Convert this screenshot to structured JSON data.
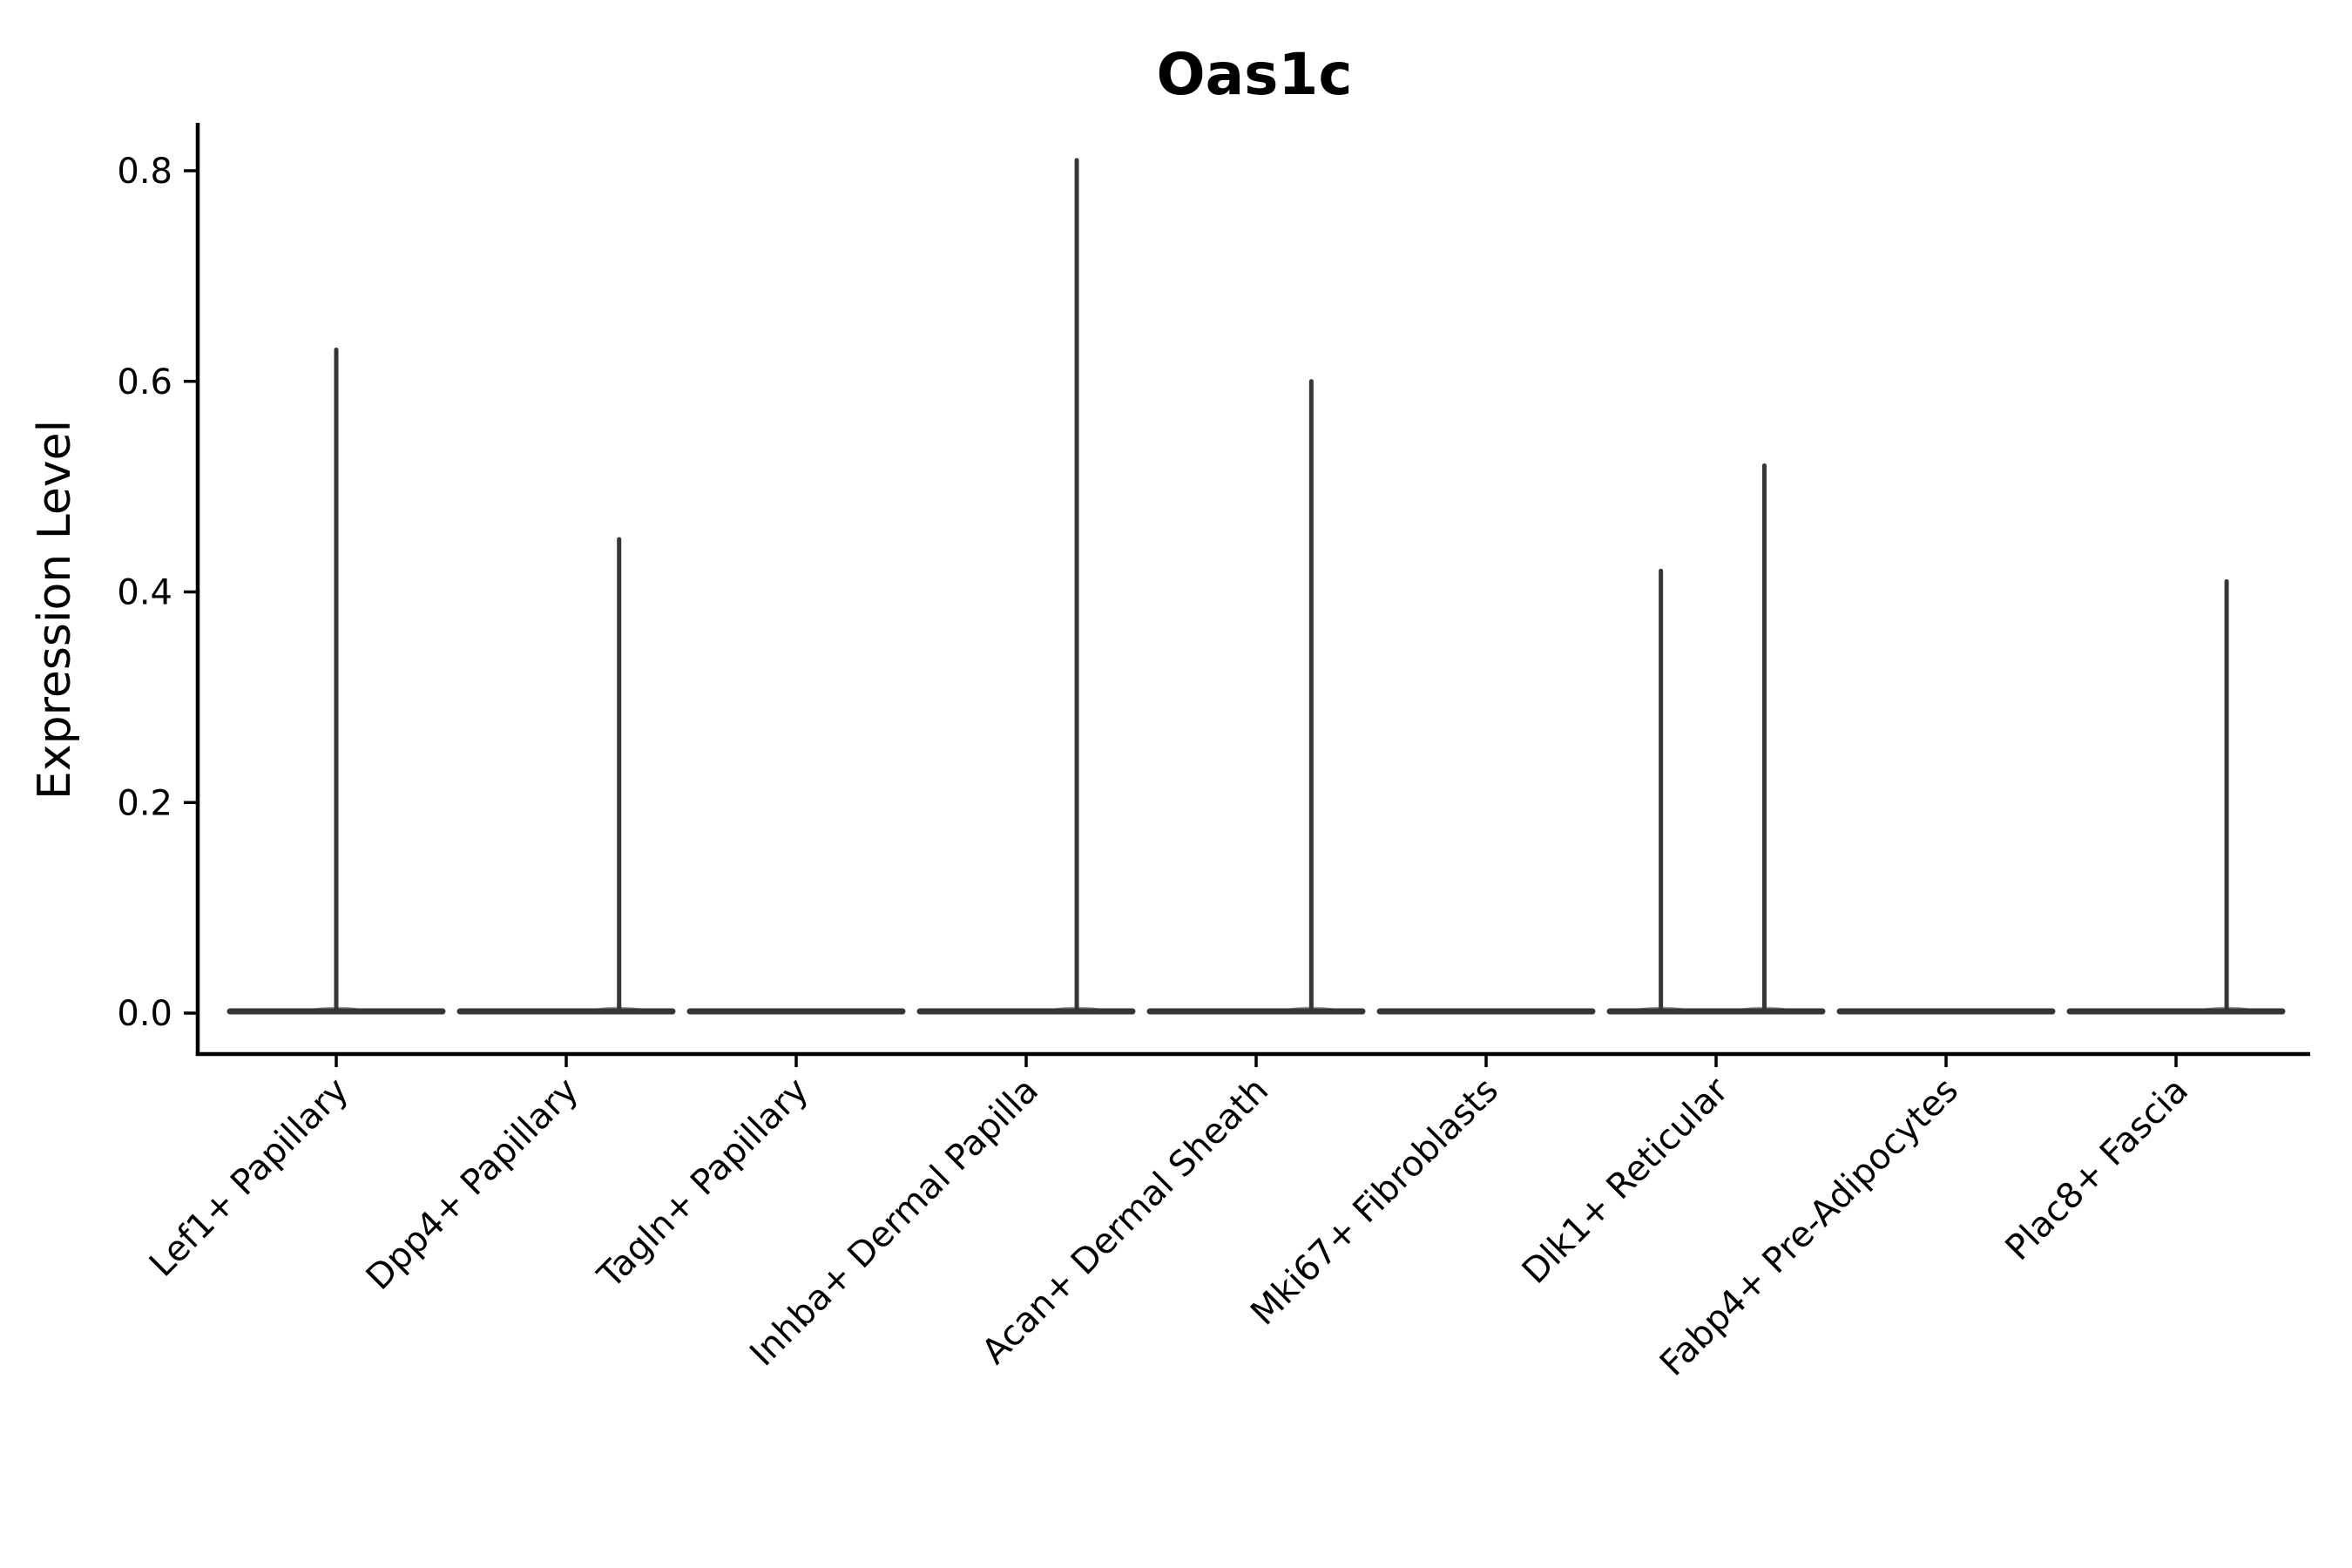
{
  "chart_data": {
    "type": "violin",
    "title": "Oas1c",
    "ylabel": "Expression Level",
    "xlabel": "",
    "grid": false,
    "legend": null,
    "background_color": "#ffffff",
    "spine_color": "#000000",
    "violin_color": "#363636",
    "ylim": [
      -0.04,
      0.85
    ],
    "yticks": [
      0.0,
      0.2,
      0.4,
      0.6,
      0.8
    ],
    "ytick_labels": [
      "0.0",
      "0.2",
      "0.4",
      "0.6",
      "0.8"
    ],
    "x_tick_label_rotation": 45,
    "categories": [
      "Lef1+ Papillary",
      "Dpp4+ Papillary",
      "Tagln+ Papillary",
      "Inhba+ Dermal Papilla",
      "Acan+ Dermal Sheath",
      "Mki67+ Fibroblasts",
      "Dlk1+ Reticular",
      "Fabp4+ Pre-Adipocytes",
      "Plac8+ Fascia"
    ],
    "violins": [
      {
        "label": "Lef1+ Papillary",
        "baseline_value": 0.0,
        "spikes": [
          {
            "dx": 0.0,
            "top": 0.63
          }
        ]
      },
      {
        "label": "Dpp4+ Papillary",
        "baseline_value": 0.0,
        "spikes": [
          {
            "dx": 0.23,
            "top": 0.45
          }
        ]
      },
      {
        "label": "Tagln+ Papillary",
        "baseline_value": 0.0,
        "spikes": []
      },
      {
        "label": "Inhba+ Dermal Papilla",
        "baseline_value": 0.0,
        "spikes": [
          {
            "dx": 0.22,
            "top": 0.81
          }
        ]
      },
      {
        "label": "Acan+ Dermal Sheath",
        "baseline_value": 0.0,
        "spikes": [
          {
            "dx": 0.24,
            "top": 0.6
          }
        ]
      },
      {
        "label": "Mki67+ Fibroblasts",
        "baseline_value": 0.0,
        "spikes": []
      },
      {
        "label": "Dlk1+ Reticular",
        "baseline_value": 0.0,
        "spikes": [
          {
            "dx": -0.24,
            "top": 0.42
          },
          {
            "dx": 0.21,
            "top": 0.52
          }
        ]
      },
      {
        "label": "Fabp4+ Pre-Adipocytes",
        "baseline_value": 0.0,
        "spikes": []
      },
      {
        "label": "Plac8+ Fascia",
        "baseline_value": 0.0,
        "spikes": [
          {
            "dx": 0.22,
            "top": 0.41
          }
        ]
      }
    ],
    "violin_body_halfwidth_fraction": 0.462
  }
}
